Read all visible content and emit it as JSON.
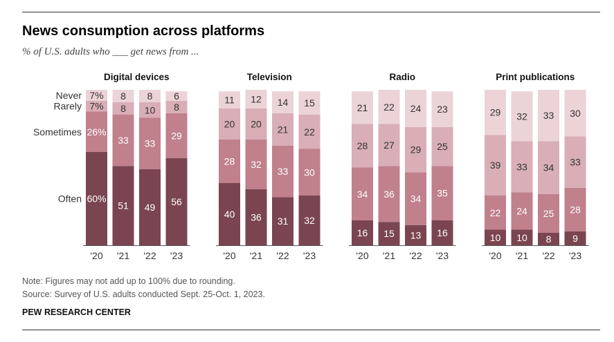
{
  "header": {
    "title": "News consumption across platforms",
    "subtitle": "% of U.S. adults who ___ get news from ..."
  },
  "footer": {
    "note": "Note: Figures may not add up to 100% due to rounding.",
    "source": "Source: Survey of U.S. adults conducted Sept. 25-Oct. 1, 2023.",
    "brand": "PEW RESEARCH CENTER"
  },
  "colors": {
    "Often": "#7a4550",
    "Sometimes": "#c0808c",
    "Rarely": "#d9aeb6",
    "Never": "#ecd3d8"
  },
  "chart_data": {
    "type": "bar",
    "stacked": true,
    "categories": [
      "'20",
      "'21",
      "'22",
      "'23"
    ],
    "series_order": [
      "Often",
      "Sometimes",
      "Rarely",
      "Never"
    ],
    "panels": [
      {
        "name": "Digital devices",
        "percent_sign_on_first": true,
        "series": [
          {
            "name": "Often",
            "values": [
              60,
              51,
              49,
              56
            ]
          },
          {
            "name": "Sometimes",
            "values": [
              26,
              33,
              33,
              29
            ]
          },
          {
            "name": "Rarely",
            "values": [
              7,
              8,
              10,
              8
            ]
          },
          {
            "name": "Never",
            "values": [
              7,
              8,
              8,
              6
            ]
          }
        ]
      },
      {
        "name": "Television",
        "series": [
          {
            "name": "Often",
            "values": [
              40,
              36,
              31,
              32
            ]
          },
          {
            "name": "Sometimes",
            "values": [
              28,
              32,
              33,
              30
            ]
          },
          {
            "name": "Rarely",
            "values": [
              20,
              20,
              21,
              22
            ]
          },
          {
            "name": "Never",
            "values": [
              11,
              12,
              14,
              15
            ]
          }
        ]
      },
      {
        "name": "Radio",
        "series": [
          {
            "name": "Often",
            "values": [
              16,
              15,
              13,
              16
            ]
          },
          {
            "name": "Sometimes",
            "values": [
              34,
              36,
              34,
              35
            ]
          },
          {
            "name": "Rarely",
            "values": [
              28,
              27,
              29,
              25
            ]
          },
          {
            "name": "Never",
            "values": [
              21,
              22,
              24,
              23
            ]
          }
        ]
      },
      {
        "name": "Print publications",
        "series": [
          {
            "name": "Often",
            "values": [
              10,
              10,
              8,
              9
            ]
          },
          {
            "name": "Sometimes",
            "values": [
              22,
              24,
              25,
              28
            ]
          },
          {
            "name": "Rarely",
            "values": [
              39,
              33,
              34,
              33
            ]
          },
          {
            "name": "Never",
            "values": [
              29,
              32,
              33,
              30
            ]
          }
        ]
      }
    ]
  }
}
